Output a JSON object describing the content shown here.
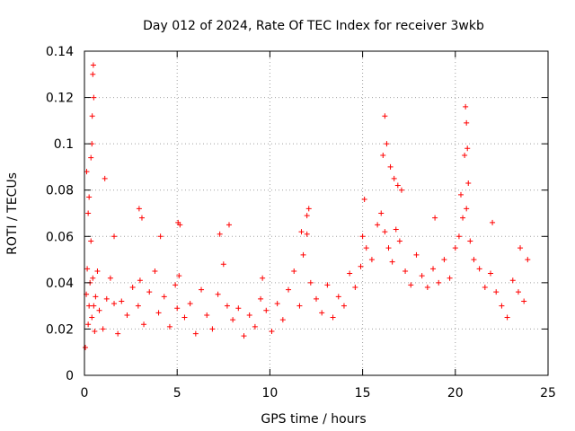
{
  "chart_data": {
    "type": "scatter",
    "title": "Day 012 of 2024, Rate Of TEC Index for receiver 3wkb",
    "xlabel": "GPS time / hours",
    "ylabel": "ROTI / TECUs",
    "xlim": [
      0,
      25
    ],
    "ylim": [
      0,
      0.14
    ],
    "xticks": [
      0,
      5,
      10,
      15,
      20,
      25
    ],
    "yticks": [
      0,
      0.02,
      0.04,
      0.06,
      0.08,
      0.1,
      0.12,
      0.14
    ],
    "xtick_labels": [
      "0",
      "5",
      "10",
      "15",
      "20",
      "25"
    ],
    "ytick_labels": [
      "0",
      "0.02",
      "0.04",
      "0.06",
      "0.08",
      "0.1",
      "0.12",
      "0.14"
    ],
    "grid": true,
    "marker": "+",
    "series": [
      {
        "name": "ROTI",
        "color": "#ff0000",
        "x": [
          0.05,
          0.1,
          0.15,
          0.2,
          0.25,
          0.3,
          0.35,
          0.4,
          0.45,
          0.5,
          0.55,
          0.6,
          0.7,
          0.8,
          1.0,
          1.2,
          1.4,
          1.6,
          1.8,
          2.0,
          2.3,
          2.6,
          2.9,
          3.0,
          3.2,
          3.5,
          3.8,
          4.0,
          4.3,
          4.6,
          4.9,
          5.0,
          5.1,
          5.4,
          5.7,
          6.0,
          6.3,
          6.6,
          6.9,
          7.2,
          7.5,
          7.7,
          8.0,
          8.3,
          8.6,
          8.9,
          9.2,
          9.5,
          9.6,
          9.8,
          10.1,
          10.4,
          10.7,
          11.0,
          11.3,
          11.6,
          11.8,
          12.0,
          12.2,
          12.5,
          12.8,
          13.1,
          13.4,
          13.7,
          14.0,
          14.3,
          14.6,
          14.9,
          15.0,
          15.2,
          15.5,
          15.8,
          16.0,
          16.2,
          16.4,
          16.6,
          16.8,
          17.0,
          17.3,
          17.6,
          17.9,
          18.2,
          18.5,
          18.8,
          19.1,
          19.4,
          19.7,
          20.0,
          20.2,
          20.4,
          20.6,
          20.8,
          21.0,
          21.3,
          21.6,
          21.9,
          22.2,
          22.5,
          22.8,
          23.1,
          23.4,
          23.7,
          23.9,
          0.12,
          0.2,
          0.25,
          0.35,
          0.4,
          0.42,
          0.45,
          0.48,
          0.5,
          1.1,
          1.6,
          2.95,
          3.1,
          4.1,
          5.05,
          5.15,
          7.3,
          7.8,
          11.7,
          12.0,
          12.1,
          15.1,
          16.1,
          16.2,
          16.3,
          16.5,
          16.7,
          16.9,
          17.1,
          18.9,
          20.3,
          20.5,
          20.55,
          20.6,
          20.65,
          20.7,
          22.0,
          23.5
        ],
        "y": [
          0.012,
          0.035,
          0.046,
          0.022,
          0.03,
          0.04,
          0.058,
          0.025,
          0.042,
          0.03,
          0.019,
          0.034,
          0.045,
          0.028,
          0.02,
          0.033,
          0.042,
          0.031,
          0.018,
          0.032,
          0.026,
          0.038,
          0.03,
          0.041,
          0.022,
          0.036,
          0.045,
          0.027,
          0.034,
          0.021,
          0.039,
          0.029,
          0.043,
          0.025,
          0.031,
          0.018,
          0.037,
          0.026,
          0.02,
          0.035,
          0.048,
          0.03,
          0.024,
          0.029,
          0.017,
          0.026,
          0.021,
          0.033,
          0.042,
          0.028,
          0.019,
          0.031,
          0.024,
          0.037,
          0.045,
          0.03,
          0.052,
          0.061,
          0.04,
          0.033,
          0.027,
          0.039,
          0.025,
          0.034,
          0.03,
          0.044,
          0.038,
          0.047,
          0.06,
          0.055,
          0.05,
          0.065,
          0.07,
          0.062,
          0.055,
          0.049,
          0.063,
          0.058,
          0.045,
          0.039,
          0.052,
          0.043,
          0.038,
          0.046,
          0.04,
          0.05,
          0.042,
          0.055,
          0.06,
          0.068,
          0.072,
          0.058,
          0.05,
          0.046,
          0.038,
          0.044,
          0.036,
          0.03,
          0.025,
          0.041,
          0.036,
          0.032,
          0.05,
          0.088,
          0.07,
          0.077,
          0.094,
          0.1,
          0.112,
          0.13,
          0.134,
          0.12,
          0.085,
          0.06,
          0.072,
          0.068,
          0.06,
          0.066,
          0.065,
          0.061,
          0.065,
          0.062,
          0.069,
          0.072,
          0.076,
          0.095,
          0.112,
          0.1,
          0.09,
          0.085,
          0.082,
          0.08,
          0.068,
          0.078,
          0.095,
          0.116,
          0.109,
          0.098,
          0.083,
          0.066,
          0.055
        ]
      }
    ]
  }
}
